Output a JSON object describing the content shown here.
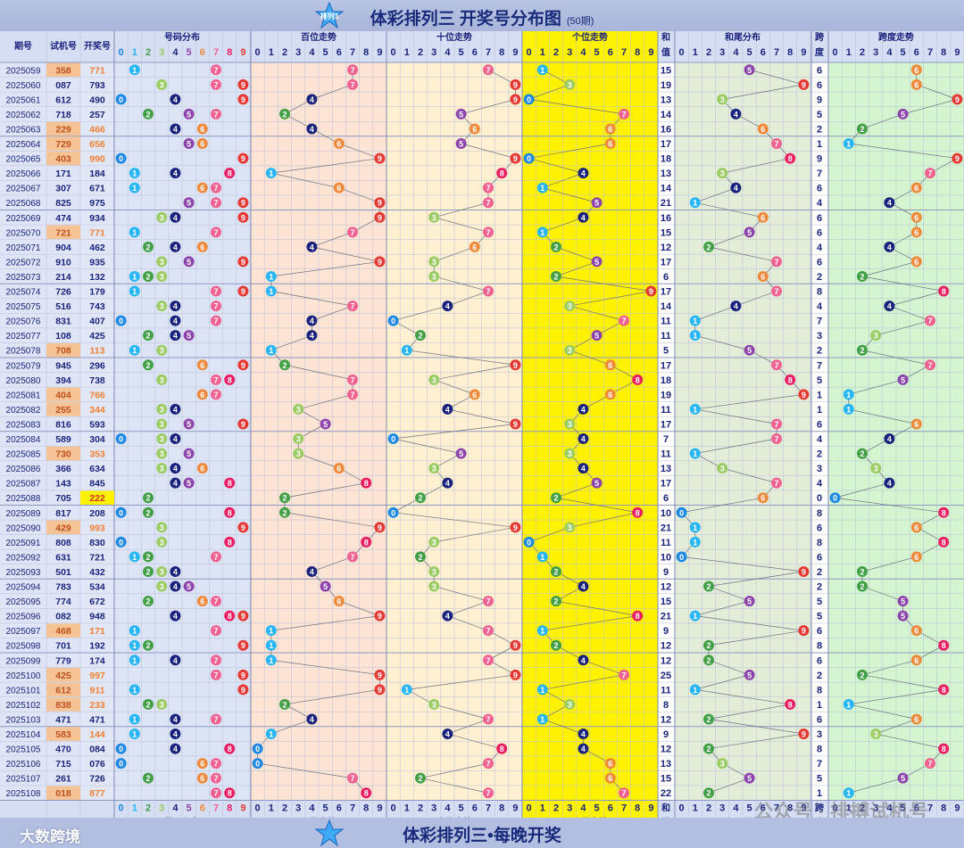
{
  "title": "体彩排列三 开奖号分布图",
  "title_note": "(50期)",
  "logo_text": "排列3",
  "footer_title": "体彩排列三•每晚开奖",
  "footer_brand": "大数跨境",
  "watermark": "公众号 · 排搏试机号",
  "headers": {
    "period": "期号",
    "test": "试机号",
    "open": "开奖号",
    "dist": "号码分布",
    "hundreds": "百位走势",
    "tens": "十位走势",
    "units": "个位走势",
    "sum": "和值",
    "sum_top": "和",
    "sum_bottom": "值",
    "tail": "和尾分布",
    "span": "跨度",
    "span_top": "跨",
    "span_bottom": "度",
    "span_trend": "跨度走势"
  },
  "digits": [
    "0",
    "1",
    "2",
    "3",
    "4",
    "5",
    "6",
    "7",
    "8",
    "9"
  ],
  "colors": {
    "d0": "#1e88e5",
    "d1": "#29b6f6",
    "d2": "#43a047",
    "d3": "#9ccc65",
    "d4": "#1a237e",
    "d5": "#8e44ad",
    "d6": "#ef8a3c",
    "d7": "#f06292",
    "d8": "#e91e63",
    "d9": "#e53935",
    "units_bg": "#fff200",
    "highlight_test": "#f5c396",
    "group3": "#f08030",
    "triple_bg": "#fff200"
  },
  "chart_data": {
    "type": "table",
    "rows": [
      {
        "period": "2025059",
        "test": "358",
        "open": "771",
        "sum": "15",
        "span": "6",
        "open_kind": "group3"
      },
      {
        "period": "2025060",
        "test": "087",
        "open": "793",
        "sum": "19",
        "span": "6",
        "open_kind": "normal"
      },
      {
        "period": "2025061",
        "test": "612",
        "open": "490",
        "sum": "13",
        "span": "9",
        "open_kind": "normal"
      },
      {
        "period": "2025062",
        "test": "718",
        "open": "257",
        "sum": "14",
        "span": "5",
        "open_kind": "normal"
      },
      {
        "period": "2025063",
        "test": "229",
        "open": "466",
        "sum": "16",
        "span": "2",
        "open_kind": "group3"
      },
      {
        "period": "2025064",
        "test": "729",
        "open": "656",
        "sum": "17",
        "span": "1",
        "open_kind": "group3"
      },
      {
        "period": "2025065",
        "test": "403",
        "open": "990",
        "sum": "18",
        "span": "9",
        "open_kind": "group3"
      },
      {
        "period": "2025066",
        "test": "171",
        "open": "184",
        "sum": "13",
        "span": "7",
        "open_kind": "normal"
      },
      {
        "period": "2025067",
        "test": "307",
        "open": "671",
        "sum": "14",
        "span": "6",
        "open_kind": "normal"
      },
      {
        "period": "2025068",
        "test": "825",
        "open": "975",
        "sum": "21",
        "span": "4",
        "open_kind": "normal"
      },
      {
        "period": "2025069",
        "test": "474",
        "open": "934",
        "sum": "16",
        "span": "6",
        "open_kind": "normal"
      },
      {
        "period": "2025070",
        "test": "721",
        "open": "771",
        "sum": "15",
        "span": "6",
        "open_kind": "group3"
      },
      {
        "period": "2025071",
        "test": "904",
        "open": "462",
        "sum": "12",
        "span": "4",
        "open_kind": "normal"
      },
      {
        "period": "2025072",
        "test": "910",
        "open": "935",
        "sum": "17",
        "span": "6",
        "open_kind": "normal"
      },
      {
        "period": "2025073",
        "test": "214",
        "open": "132",
        "sum": "6",
        "span": "2",
        "open_kind": "normal"
      },
      {
        "period": "2025074",
        "test": "726",
        "open": "179",
        "sum": "17",
        "span": "8",
        "open_kind": "normal"
      },
      {
        "period": "2025075",
        "test": "516",
        "open": "743",
        "sum": "14",
        "span": "4",
        "open_kind": "normal"
      },
      {
        "period": "2025076",
        "test": "831",
        "open": "407",
        "sum": "11",
        "span": "7",
        "open_kind": "normal"
      },
      {
        "period": "2025077",
        "test": "108",
        "open": "425",
        "sum": "11",
        "span": "3",
        "open_kind": "normal"
      },
      {
        "period": "2025078",
        "test": "708",
        "open": "113",
        "sum": "5",
        "span": "2",
        "open_kind": "group3"
      },
      {
        "period": "2025079",
        "test": "945",
        "open": "296",
        "sum": "17",
        "span": "7",
        "open_kind": "normal"
      },
      {
        "period": "2025080",
        "test": "394",
        "open": "738",
        "sum": "18",
        "span": "5",
        "open_kind": "normal"
      },
      {
        "period": "2025081",
        "test": "404",
        "open": "766",
        "sum": "19",
        "span": "1",
        "open_kind": "group3"
      },
      {
        "period": "2025082",
        "test": "255",
        "open": "344",
        "sum": "11",
        "span": "1",
        "open_kind": "group3"
      },
      {
        "period": "2025083",
        "test": "816",
        "open": "593",
        "sum": "17",
        "span": "6",
        "open_kind": "normal"
      },
      {
        "period": "2025084",
        "test": "589",
        "open": "304",
        "sum": "7",
        "span": "4",
        "open_kind": "normal"
      },
      {
        "period": "2025085",
        "test": "730",
        "open": "353",
        "sum": "11",
        "span": "2",
        "open_kind": "group3"
      },
      {
        "period": "2025086",
        "test": "366",
        "open": "634",
        "sum": "13",
        "span": "3",
        "open_kind": "normal"
      },
      {
        "period": "2025087",
        "test": "143",
        "open": "845",
        "sum": "17",
        "span": "4",
        "open_kind": "normal"
      },
      {
        "period": "2025088",
        "test": "705",
        "open": "222",
        "sum": "6",
        "span": "0",
        "open_kind": "triple"
      },
      {
        "period": "2025089",
        "test": "817",
        "open": "208",
        "sum": "10",
        "span": "8",
        "open_kind": "normal"
      },
      {
        "period": "2025090",
        "test": "429",
        "open": "993",
        "sum": "21",
        "span": "6",
        "open_kind": "group3"
      },
      {
        "period": "2025091",
        "test": "808",
        "open": "830",
        "sum": "11",
        "span": "8",
        "open_kind": "normal"
      },
      {
        "period": "2025092",
        "test": "631",
        "open": "721",
        "sum": "10",
        "span": "6",
        "open_kind": "normal"
      },
      {
        "period": "2025093",
        "test": "501",
        "open": "432",
        "sum": "9",
        "span": "2",
        "open_kind": "normal"
      },
      {
        "period": "2025094",
        "test": "783",
        "open": "534",
        "sum": "12",
        "span": "2",
        "open_kind": "normal"
      },
      {
        "period": "2025095",
        "test": "774",
        "open": "672",
        "sum": "15",
        "span": "5",
        "open_kind": "normal"
      },
      {
        "period": "2025096",
        "test": "082",
        "open": "948",
        "sum": "21",
        "span": "5",
        "open_kind": "normal"
      },
      {
        "period": "2025097",
        "test": "468",
        "open": "171",
        "sum": "9",
        "span": "6",
        "open_kind": "group3"
      },
      {
        "period": "2025098",
        "test": "701",
        "open": "192",
        "sum": "12",
        "span": "8",
        "open_kind": "normal"
      },
      {
        "period": "2025099",
        "test": "779",
        "open": "174",
        "sum": "12",
        "span": "6",
        "open_kind": "normal"
      },
      {
        "period": "2025100",
        "test": "425",
        "open": "997",
        "sum": "25",
        "span": "2",
        "open_kind": "group3"
      },
      {
        "period": "2025101",
        "test": "612",
        "open": "911",
        "sum": "11",
        "span": "8",
        "open_kind": "group3"
      },
      {
        "period": "2025102",
        "test": "838",
        "open": "233",
        "sum": "8",
        "span": "1",
        "open_kind": "group3"
      },
      {
        "period": "2025103",
        "test": "471",
        "open": "471",
        "sum": "12",
        "span": "6",
        "open_kind": "normal"
      },
      {
        "period": "2025104",
        "test": "583",
        "open": "144",
        "sum": "9",
        "span": "3",
        "open_kind": "group3"
      },
      {
        "period": "2025105",
        "test": "470",
        "open": "084",
        "sum": "12",
        "span": "8",
        "open_kind": "normal"
      },
      {
        "period": "2025106",
        "test": "715",
        "open": "076",
        "sum": "13",
        "span": "7",
        "open_kind": "normal"
      },
      {
        "period": "2025107",
        "test": "261",
        "open": "726",
        "sum": "15",
        "span": "5",
        "open_kind": "normal"
      },
      {
        "period": "2025108",
        "test": "018",
        "open": "877",
        "sum": "22",
        "span": "1",
        "open_kind": "group3"
      }
    ]
  }
}
